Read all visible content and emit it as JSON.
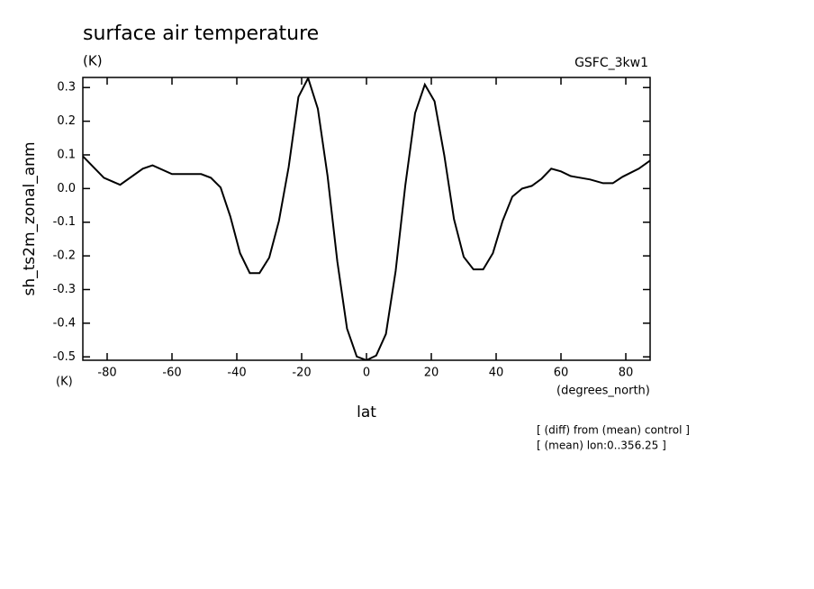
{
  "chart_data": {
    "type": "line",
    "title": "surface air temperature",
    "subtitle": "(K)",
    "source": "GSFC_3kw1",
    "y_label": "sh_ts2m_zonal_anm",
    "y_units": "(K)",
    "x_label": "lat",
    "x_units": "(degrees_north)",
    "notes": [
      "[ (diff) from (mean) control ]",
      "[ (mean) lon:0..356.25 ]"
    ],
    "x": [
      -87.5,
      -81,
      -76,
      -69,
      -66,
      -60,
      -51,
      -48,
      -45,
      -42,
      -39,
      -36,
      -33,
      -30,
      -27,
      -24,
      -21,
      -18,
      -15,
      -12,
      -9,
      -6,
      -3,
      0,
      3,
      6,
      9,
      12,
      15,
      18,
      21,
      24,
      27,
      30,
      33,
      36,
      39,
      42,
      45,
      48,
      51,
      54,
      57,
      60,
      63,
      69,
      73,
      76,
      79,
      84,
      87.5
    ],
    "series": [
      {
        "color": "#000000",
        "values": [
          0.096,
          0.032,
          0.011,
          0.059,
          0.069,
          0.043,
          0.043,
          0.032,
          0.003,
          -0.083,
          -0.192,
          -0.251,
          -0.251,
          -0.205,
          -0.096,
          0.064,
          0.272,
          0.328,
          0.237,
          0.037,
          -0.216,
          -0.416,
          -0.499,
          -0.51,
          -0.496,
          -0.432,
          -0.245,
          0.011,
          0.224,
          0.309,
          0.259,
          0.099,
          -0.091,
          -0.203,
          -0.24,
          -0.24,
          -0.192,
          -0.096,
          -0.024,
          0.0,
          0.008,
          0.029,
          0.059,
          0.051,
          0.037,
          0.027,
          0.016,
          0.016,
          0.035,
          0.059,
          0.083
        ]
      }
    ],
    "xlim": [
      -87.5,
      87.5
    ],
    "ylim": [
      -0.51,
      0.33
    ],
    "xticks": [
      -80,
      -60,
      -40,
      -20,
      0,
      20,
      40,
      60,
      80
    ],
    "yticks": [
      -0.5,
      -0.4,
      -0.3,
      -0.2,
      -0.1,
      {
        "value": 0,
        "label": "0.0"
      },
      0.1,
      0.2,
      0.3
    ]
  }
}
